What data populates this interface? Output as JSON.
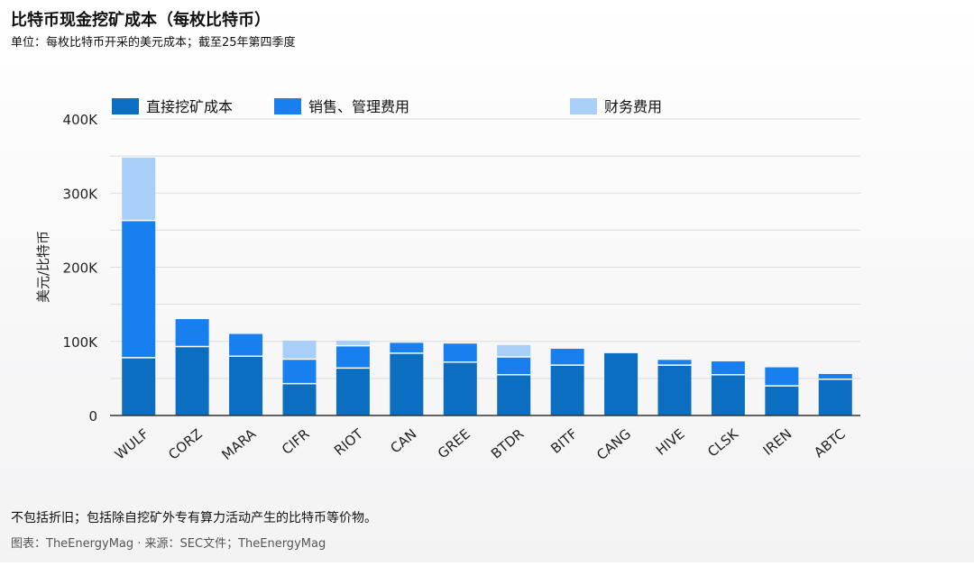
{
  "header": {
    "title": "比特币现金挖矿成本（每枚比特币）",
    "subtitle": "单位：每枚比特币开采的美元成本；截至25年第四季度"
  },
  "footer": {
    "note": "不包括折旧；包括除自挖矿外专有算力活动产生的比特币等价物。",
    "source": "图表：TheEnergyMag · 来源：SEC文件；TheEnergyMag"
  },
  "colors": {
    "direct": "#0b6ec0",
    "sga": "#1780ee",
    "finance": "#a7cff7",
    "grid": "#dddddd",
    "axis": "#333333"
  },
  "chart_data": {
    "type": "bar",
    "stacked": true,
    "categories": [
      "WULF",
      "CORZ",
      "MARA",
      "CIFR",
      "RIOT",
      "CAN",
      "GREE",
      "BTDR",
      "BITF",
      "CANG",
      "HIVE",
      "CLSK",
      "IREN",
      "ABTC"
    ],
    "series": [
      {
        "name": "直接挖矿成本",
        "values": [
          78000,
          93000,
          80000,
          43000,
          64000,
          84000,
          72000,
          55000,
          68000,
          84000,
          68000,
          55000,
          40000,
          49000
        ]
      },
      {
        "name": "销售、管理费用",
        "values": [
          185000,
          37000,
          30000,
          33000,
          30000,
          14000,
          25000,
          24000,
          22000,
          0,
          7000,
          18000,
          25000,
          7000
        ]
      },
      {
        "name": "财务费用",
        "values": [
          85000,
          0,
          0,
          25000,
          7000,
          0,
          0,
          16000,
          0,
          0,
          0,
          0,
          0,
          0
        ]
      }
    ],
    "ylabel": "美元/比特币",
    "xlabel": "",
    "ylim": [
      0,
      400000
    ],
    "yticks": [
      0,
      100000,
      200000,
      300000,
      400000
    ],
    "ytick_labels": [
      "0",
      "100K",
      "200K",
      "300K",
      "400K"
    ],
    "grid": true,
    "legend_position": "top"
  }
}
